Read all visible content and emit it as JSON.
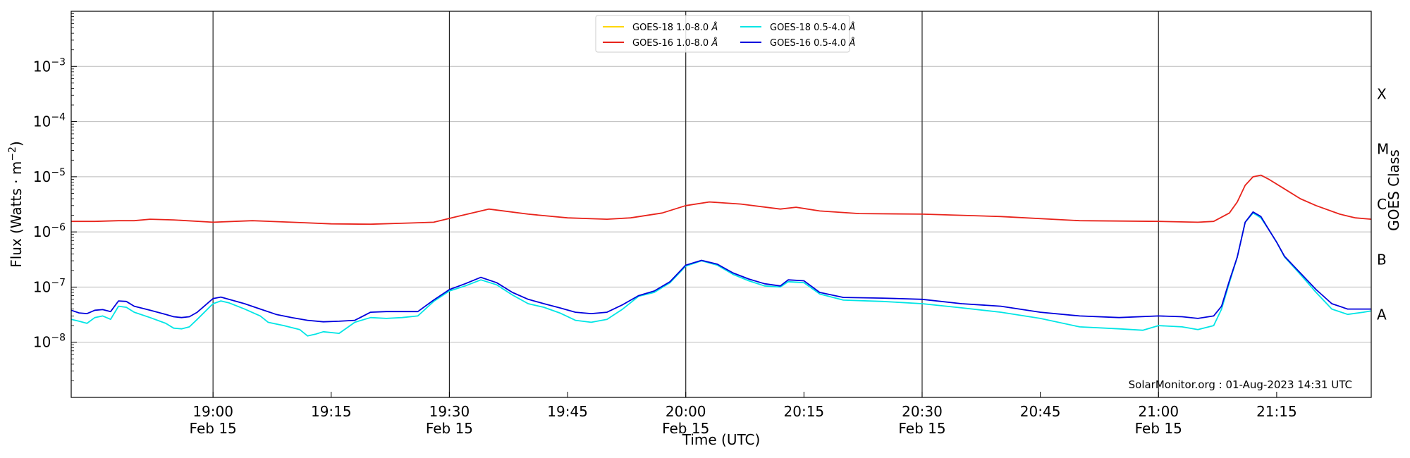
{
  "chart_data": {
    "type": "line",
    "xlabel": "Time (UTC)",
    "ylabel": "Flux (Watts · m",
    "ylabel_sup": "−2",
    "ylabel_tail": ")",
    "y2label": "GOES Class",
    "yscale": "log",
    "ylim": [
      1e-09,
      0.01
    ],
    "xlim": [
      "18:42",
      "21:27"
    ],
    "grid_y": true,
    "legend_placement": "top-center",
    "x_ticks": [
      {
        "time": "19:00",
        "line1": "19:00",
        "line2": "Feb 15",
        "major": true
      },
      {
        "time": "19:15",
        "line1": "19:15",
        "line2": "",
        "major": false
      },
      {
        "time": "19:30",
        "line1": "19:30",
        "line2": "Feb 15",
        "major": true
      },
      {
        "time": "19:45",
        "line1": "19:45",
        "line2": "",
        "major": false
      },
      {
        "time": "20:00",
        "line1": "20:00",
        "line2": "Feb 15",
        "major": true
      },
      {
        "time": "20:15",
        "line1": "20:15",
        "line2": "",
        "major": false
      },
      {
        "time": "20:30",
        "line1": "20:30",
        "line2": "Feb 15",
        "major": true
      },
      {
        "time": "20:45",
        "line1": "20:45",
        "line2": "",
        "major": false
      },
      {
        "time": "21:00",
        "line1": "21:00",
        "line2": "Feb 15",
        "major": true
      },
      {
        "time": "21:15",
        "line1": "21:15",
        "line2": "",
        "major": false
      }
    ],
    "y_ticks": [
      {
        "exp": -8,
        "base": "10",
        "sup": "−8"
      },
      {
        "exp": -7,
        "base": "10",
        "sup": "−7"
      },
      {
        "exp": -6,
        "base": "10",
        "sup": "−6"
      },
      {
        "exp": -5,
        "base": "10",
        "sup": "−5"
      },
      {
        "exp": -4,
        "base": "10",
        "sup": "−4"
      },
      {
        "exp": -3,
        "base": "10",
        "sup": "−3"
      }
    ],
    "goes_classes": [
      {
        "label": "A",
        "exp": -7.5
      },
      {
        "label": "B",
        "exp": -6.5
      },
      {
        "label": "C",
        "exp": -5.5
      },
      {
        "label": "M",
        "exp": -4.5
      },
      {
        "label": "X",
        "exp": -3.5
      }
    ],
    "legend": [
      {
        "name": "GOES-18 1.0-8.0",
        "unit": "Å",
        "color": "#ffd700"
      },
      {
        "name": "GOES-18 0.5-4.0",
        "unit": "Å",
        "color": "#00e5e5"
      },
      {
        "name": "GOES-16 1.0-8.0",
        "unit": "Å",
        "color": "#e8231b"
      },
      {
        "name": "GOES-16 0.5-4.0",
        "unit": "Å",
        "color": "#0000dd"
      }
    ],
    "watermark": "SolarMonitor.org : 01-Aug-2023 14:31 UTC",
    "series": [
      {
        "name": "GOES-16 1.0-8.0",
        "color": "#e8231b",
        "points": [
          [
            "18:42",
            1.55e-06
          ],
          [
            "18:45",
            1.55e-06
          ],
          [
            "18:48",
            1.6e-06
          ],
          [
            "18:50",
            1.6e-06
          ],
          [
            "18:52",
            1.7e-06
          ],
          [
            "18:55",
            1.65e-06
          ],
          [
            "19:00",
            1.5e-06
          ],
          [
            "19:05",
            1.6e-06
          ],
          [
            "19:10",
            1.5e-06
          ],
          [
            "19:15",
            1.4e-06
          ],
          [
            "19:20",
            1.38e-06
          ],
          [
            "19:25",
            1.45e-06
          ],
          [
            "19:28",
            1.5e-06
          ],
          [
            "19:31",
            1.9e-06
          ],
          [
            "19:35",
            2.6e-06
          ],
          [
            "19:40",
            2.1e-06
          ],
          [
            "19:45",
            1.8e-06
          ],
          [
            "19:50",
            1.7e-06
          ],
          [
            "19:53",
            1.8e-06
          ],
          [
            "19:57",
            2.2e-06
          ],
          [
            "20:00",
            3e-06
          ],
          [
            "20:03",
            3.5e-06
          ],
          [
            "20:07",
            3.2e-06
          ],
          [
            "20:12",
            2.6e-06
          ],
          [
            "20:14",
            2.8e-06
          ],
          [
            "20:17",
            2.4e-06
          ],
          [
            "20:22",
            2.15e-06
          ],
          [
            "20:30",
            2.1e-06
          ],
          [
            "20:40",
            1.9e-06
          ],
          [
            "20:50",
            1.6e-06
          ],
          [
            "21:00",
            1.55e-06
          ],
          [
            "21:05",
            1.5e-06
          ],
          [
            "21:07",
            1.55e-06
          ],
          [
            "21:09",
            2.2e-06
          ],
          [
            "21:10",
            3.5e-06
          ],
          [
            "21:11",
            7e-06
          ],
          [
            "21:12",
            1e-05
          ],
          [
            "21:13",
            1.07e-05
          ],
          [
            "21:14",
            9e-06
          ],
          [
            "21:16",
            6e-06
          ],
          [
            "21:18",
            4e-06
          ],
          [
            "21:20",
            3e-06
          ],
          [
            "21:23",
            2.1e-06
          ],
          [
            "21:25",
            1.8e-06
          ],
          [
            "21:27",
            1.7e-06
          ]
        ]
      },
      {
        "name": "GOES-18 0.5-4.0",
        "color": "#00e5e5",
        "points": [
          [
            "18:42",
            2.6e-08
          ],
          [
            "18:43",
            2.4e-08
          ],
          [
            "18:44",
            2.2e-08
          ],
          [
            "18:45",
            2.8e-08
          ],
          [
            "18:46",
            3e-08
          ],
          [
            "18:47",
            2.6e-08
          ],
          [
            "18:48",
            4.5e-08
          ],
          [
            "18:49",
            4.3e-08
          ],
          [
            "18:50",
            3.5e-08
          ],
          [
            "18:52",
            2.8e-08
          ],
          [
            "18:54",
            2.2e-08
          ],
          [
            "18:55",
            1.8e-08
          ],
          [
            "18:56",
            1.75e-08
          ],
          [
            "18:57",
            1.9e-08
          ],
          [
            "18:58",
            2.6e-08
          ],
          [
            "19:00",
            5e-08
          ],
          [
            "19:01",
            5.6e-08
          ],
          [
            "19:02",
            5.2e-08
          ],
          [
            "19:04",
            4e-08
          ],
          [
            "19:06",
            3e-08
          ],
          [
            "19:07",
            2.3e-08
          ],
          [
            "19:09",
            2e-08
          ],
          [
            "19:11",
            1.7e-08
          ],
          [
            "19:12",
            1.3e-08
          ],
          [
            "19:13",
            1.4e-08
          ],
          [
            "19:14",
            1.55e-08
          ],
          [
            "19:16",
            1.45e-08
          ],
          [
            "19:18",
            2.3e-08
          ],
          [
            "19:20",
            2.8e-08
          ],
          [
            "19:22",
            2.7e-08
          ],
          [
            "19:24",
            2.8e-08
          ],
          [
            "19:26",
            3e-08
          ],
          [
            "19:28",
            5.5e-08
          ],
          [
            "19:30",
            8.5e-08
          ],
          [
            "19:32",
            1.05e-07
          ],
          [
            "19:34",
            1.35e-07
          ],
          [
            "19:36",
            1.1e-07
          ],
          [
            "19:38",
            7.2e-08
          ],
          [
            "19:40",
            5e-08
          ],
          [
            "19:42",
            4.3e-08
          ],
          [
            "19:44",
            3.4e-08
          ],
          [
            "19:46",
            2.5e-08
          ],
          [
            "19:48",
            2.3e-08
          ],
          [
            "19:50",
            2.6e-08
          ],
          [
            "19:52",
            4e-08
          ],
          [
            "19:54",
            6.8e-08
          ],
          [
            "19:56",
            8e-08
          ],
          [
            "19:58",
            1.2e-07
          ],
          [
            "20:00",
            2.4e-07
          ],
          [
            "20:02",
            3e-07
          ],
          [
            "20:04",
            2.5e-07
          ],
          [
            "20:06",
            1.7e-07
          ],
          [
            "20:08",
            1.3e-07
          ],
          [
            "20:10",
            1.05e-07
          ],
          [
            "20:12",
            1e-07
          ],
          [
            "20:13",
            1.25e-07
          ],
          [
            "20:15",
            1.2e-07
          ],
          [
            "20:17",
            7.5e-08
          ],
          [
            "20:20",
            5.8e-08
          ],
          [
            "20:25",
            5.5e-08
          ],
          [
            "20:30",
            5e-08
          ],
          [
            "20:35",
            4.2e-08
          ],
          [
            "20:40",
            3.5e-08
          ],
          [
            "20:45",
            2.7e-08
          ],
          [
            "20:50",
            1.9e-08
          ],
          [
            "20:55",
            1.75e-08
          ],
          [
            "20:58",
            1.65e-08
          ],
          [
            "21:00",
            2e-08
          ],
          [
            "21:03",
            1.9e-08
          ],
          [
            "21:05",
            1.7e-08
          ],
          [
            "21:07",
            2e-08
          ],
          [
            "21:08",
            4e-08
          ],
          [
            "21:09",
            1.2e-07
          ],
          [
            "21:10",
            3.5e-07
          ],
          [
            "21:11",
            1.5e-06
          ],
          [
            "21:12",
            2.2e-06
          ],
          [
            "21:13",
            1.8e-06
          ],
          [
            "21:14",
            1.1e-06
          ],
          [
            "21:15",
            6.5e-07
          ],
          [
            "21:16",
            3.5e-07
          ],
          [
            "21:18",
            1.7e-07
          ],
          [
            "21:20",
            8e-08
          ],
          [
            "21:22",
            4e-08
          ],
          [
            "21:24",
            3.2e-08
          ],
          [
            "21:26",
            3.5e-08
          ],
          [
            "21:27",
            3.7e-08
          ]
        ]
      },
      {
        "name": "GOES-16 0.5-4.0",
        "color": "#0000dd",
        "points": [
          [
            "18:42",
            3.8e-08
          ],
          [
            "18:43",
            3.4e-08
          ],
          [
            "18:44",
            3.3e-08
          ],
          [
            "18:45",
            3.8e-08
          ],
          [
            "18:46",
            3.9e-08
          ],
          [
            "18:47",
            3.6e-08
          ],
          [
            "18:48",
            5.6e-08
          ],
          [
            "18:49",
            5.5e-08
          ],
          [
            "18:50",
            4.5e-08
          ],
          [
            "18:52",
            3.8e-08
          ],
          [
            "18:54",
            3.2e-08
          ],
          [
            "18:55",
            2.9e-08
          ],
          [
            "18:56",
            2.8e-08
          ],
          [
            "18:57",
            2.9e-08
          ],
          [
            "18:58",
            3.5e-08
          ],
          [
            "19:00",
            6.2e-08
          ],
          [
            "19:01",
            6.6e-08
          ],
          [
            "19:02",
            6e-08
          ],
          [
            "19:04",
            5e-08
          ],
          [
            "19:06",
            4e-08
          ],
          [
            "19:08",
            3.2e-08
          ],
          [
            "19:10",
            2.8e-08
          ],
          [
            "19:12",
            2.5e-08
          ],
          [
            "19:14",
            2.35e-08
          ],
          [
            "19:16",
            2.4e-08
          ],
          [
            "19:18",
            2.5e-08
          ],
          [
            "19:20",
            3.5e-08
          ],
          [
            "19:22",
            3.6e-08
          ],
          [
            "19:24",
            3.6e-08
          ],
          [
            "19:26",
            3.6e-08
          ],
          [
            "19:28",
            5.8e-08
          ],
          [
            "19:30",
            9e-08
          ],
          [
            "19:32",
            1.15e-07
          ],
          [
            "19:34",
            1.5e-07
          ],
          [
            "19:36",
            1.2e-07
          ],
          [
            "19:38",
            8e-08
          ],
          [
            "19:40",
            6e-08
          ],
          [
            "19:42",
            5e-08
          ],
          [
            "19:44",
            4.2e-08
          ],
          [
            "19:46",
            3.5e-08
          ],
          [
            "19:48",
            3.3e-08
          ],
          [
            "19:50",
            3.5e-08
          ],
          [
            "19:52",
            4.8e-08
          ],
          [
            "19:54",
            7e-08
          ],
          [
            "19:56",
            8.5e-08
          ],
          [
            "19:58",
            1.25e-07
          ],
          [
            "20:00",
            2.5e-07
          ],
          [
            "20:02",
            3.05e-07
          ],
          [
            "20:04",
            2.6e-07
          ],
          [
            "20:06",
            1.8e-07
          ],
          [
            "20:08",
            1.4e-07
          ],
          [
            "20:10",
            1.15e-07
          ],
          [
            "20:12",
            1.05e-07
          ],
          [
            "20:13",
            1.35e-07
          ],
          [
            "20:15",
            1.3e-07
          ],
          [
            "20:17",
            8e-08
          ],
          [
            "20:20",
            6.5e-08
          ],
          [
            "20:25",
            6.3e-08
          ],
          [
            "20:30",
            6e-08
          ],
          [
            "20:35",
            5e-08
          ],
          [
            "20:40",
            4.5e-08
          ],
          [
            "20:45",
            3.5e-08
          ],
          [
            "20:50",
            3e-08
          ],
          [
            "20:55",
            2.8e-08
          ],
          [
            "21:00",
            3e-08
          ],
          [
            "21:03",
            2.9e-08
          ],
          [
            "21:05",
            2.7e-08
          ],
          [
            "21:07",
            3e-08
          ],
          [
            "21:08",
            4.5e-08
          ],
          [
            "21:09",
            1.3e-07
          ],
          [
            "21:10",
            3.5e-07
          ],
          [
            "21:11",
            1.5e-06
          ],
          [
            "21:12",
            2.3e-06
          ],
          [
            "21:13",
            1.9e-06
          ],
          [
            "21:14",
            1.1e-06
          ],
          [
            "21:15",
            6.5e-07
          ],
          [
            "21:16",
            3.6e-07
          ],
          [
            "21:18",
            1.8e-07
          ],
          [
            "21:20",
            9e-08
          ],
          [
            "21:22",
            5e-08
          ],
          [
            "21:24",
            4e-08
          ],
          [
            "21:26",
            4e-08
          ],
          [
            "21:27",
            4e-08
          ]
        ]
      }
    ]
  }
}
